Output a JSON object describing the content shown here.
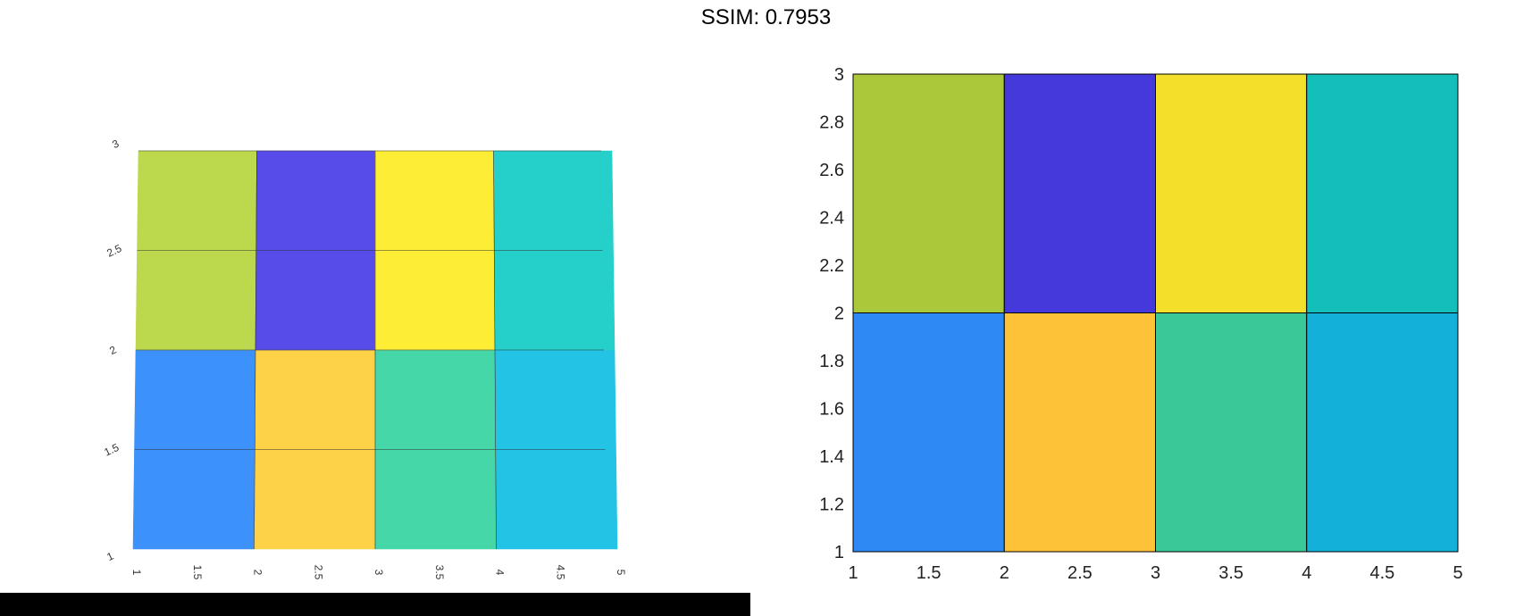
{
  "figure": {
    "title": "SSIM: 0.7953"
  },
  "chart_data": [
    {
      "type": "heatmap",
      "x_edges": [
        1,
        2,
        3,
        4,
        5
      ],
      "y_edges": [
        1,
        2,
        3
      ],
      "cells": [
        [
          "#3c91fa",
          "#fed247",
          "#46d7a8",
          "#23c3e6"
        ],
        [
          "#bcd94d",
          "#574ce9",
          "#fdee35",
          "#25cfca"
        ]
      ],
      "xlim": [
        1,
        5
      ],
      "ylim": [
        1,
        3
      ],
      "x_ticks": [
        1,
        1.5,
        2,
        2.5,
        3,
        3.5,
        4,
        4.5,
        5
      ],
      "y_ticks": [
        1,
        1.5,
        2,
        2.5,
        3
      ],
      "x_tick_labels": [
        "1",
        "1.5",
        "2",
        "2.5",
        "3",
        "3.5",
        "4",
        "4.5",
        "5"
      ],
      "y_tick_labels": [
        "1",
        "1.5",
        "2",
        "2.5",
        "3"
      ],
      "grid": true
    },
    {
      "type": "heatmap",
      "x_edges": [
        1,
        2,
        3,
        4,
        5
      ],
      "y_edges": [
        1,
        2,
        3
      ],
      "cells": [
        [
          "#2f89f5",
          "#fdc237",
          "#39c897",
          "#13b1da"
        ],
        [
          "#abc83b",
          "#4539dc",
          "#f4df2a",
          "#13bfba"
        ]
      ],
      "xlim": [
        1,
        5
      ],
      "ylim": [
        1,
        3
      ],
      "x_ticks": [
        1,
        1.5,
        2,
        2.5,
        3,
        3.5,
        4,
        4.5,
        5
      ],
      "y_ticks": [
        1,
        1.2,
        1.4,
        1.6,
        1.8,
        2,
        2.2,
        2.4,
        2.6,
        2.8,
        3
      ],
      "x_tick_labels": [
        "1",
        "1.5",
        "2",
        "2.5",
        "3",
        "3.5",
        "4",
        "4.5",
        "5"
      ],
      "y_tick_labels": [
        "1",
        "1.2",
        "1.4",
        "1.6",
        "1.8",
        "2",
        "2.2",
        "2.4",
        "2.6",
        "2.8",
        "3"
      ],
      "grid": false
    }
  ]
}
